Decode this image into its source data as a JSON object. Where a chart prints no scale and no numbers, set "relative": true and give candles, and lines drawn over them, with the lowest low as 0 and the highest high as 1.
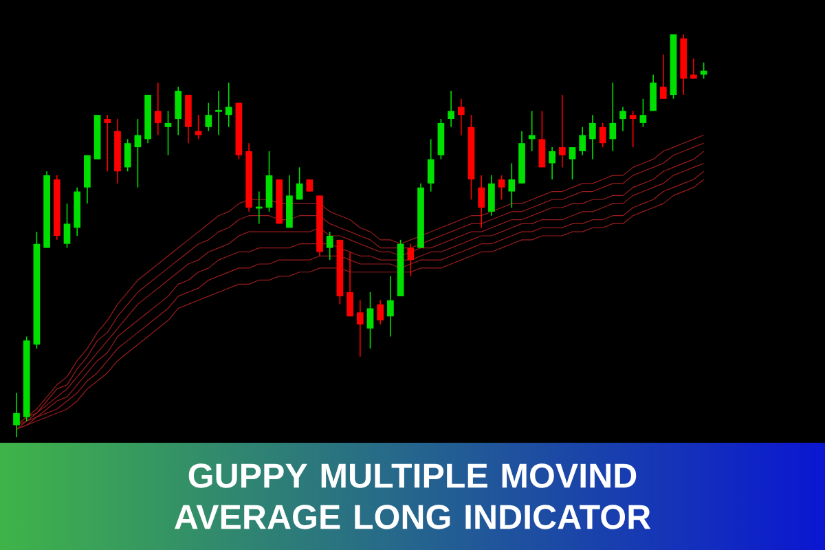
{
  "chart_data": {
    "type": "candlestick",
    "title": "GUPPY MULTIPLE MOVIND AVERAGE LONG INDICATOR",
    "relative": true,
    "categories": [
      null,
      null,
      null,
      null,
      null,
      null,
      null,
      null,
      null,
      null,
      null,
      null,
      null,
      null,
      null,
      null,
      null,
      null,
      null,
      null,
      null,
      null,
      null,
      null,
      null,
      null,
      null,
      null,
      null,
      null,
      null,
      null,
      null,
      null,
      null,
      null,
      null,
      null,
      null,
      null,
      null,
      null,
      null,
      null,
      null,
      null,
      null,
      null,
      null,
      null,
      null,
      null,
      null,
      null,
      null,
      null,
      null,
      null,
      null,
      null,
      null,
      null,
      null,
      null,
      null,
      null,
      null,
      null,
      null
    ],
    "ohlc": [
      [
        0.03,
        0.11,
        0,
        0.06
      ],
      [
        0.05,
        0.25,
        0.04,
        0.24
      ],
      [
        0.23,
        0.51,
        0.22,
        0.48
      ],
      [
        0.47,
        0.66,
        0.47,
        0.65
      ],
      [
        0.64,
        0.65,
        0.49,
        0.5
      ],
      [
        0.48,
        0.58,
        0.47,
        0.53
      ],
      [
        0.52,
        0.62,
        0.5,
        0.61
      ],
      [
        0.62,
        0.7,
        0.58,
        0.7
      ],
      [
        0.69,
        0.8,
        0.69,
        0.8
      ],
      [
        0.79,
        0.8,
        0.66,
        0.78
      ],
      [
        0.76,
        0.79,
        0.63,
        0.66
      ],
      [
        0.67,
        0.74,
        0.66,
        0.73
      ],
      [
        0.72,
        0.79,
        0.62,
        0.75
      ],
      [
        0.74,
        0.85,
        0.73,
        0.85
      ],
      [
        0.81,
        0.88,
        0.75,
        0.78
      ],
      [
        0.77,
        0.81,
        0.7,
        0.78
      ],
      [
        0.79,
        0.87,
        0.75,
        0.86
      ],
      [
        0.85,
        0.85,
        0.73,
        0.77
      ],
      [
        0.76,
        0.8,
        0.74,
        0.75
      ],
      [
        0.77,
        0.83,
        0.76,
        0.8
      ],
      [
        0.81,
        0.86,
        0.75,
        0.81
      ],
      [
        0.8,
        0.88,
        0.77,
        0.82
      ],
      [
        0.83,
        0.83,
        0.69,
        0.7
      ],
      [
        0.71,
        0.73,
        0.56,
        0.57
      ],
      [
        0.57,
        0.61,
        0.53,
        0.57
      ],
      [
        0.57,
        0.71,
        0.56,
        0.65
      ],
      [
        0.64,
        0.64,
        0.53,
        0.53
      ],
      [
        0.52,
        0.65,
        0.52,
        0.6
      ],
      [
        0.59,
        0.67,
        0.59,
        0.63
      ],
      [
        0.64,
        0.64,
        0.61,
        0.61
      ],
      [
        0.6,
        0.6,
        0.45,
        0.46
      ],
      [
        0.47,
        0.51,
        0.44,
        0.5
      ],
      [
        0.49,
        0.49,
        0.33,
        0.35
      ],
      [
        0.36,
        0.46,
        0.3,
        0.3
      ],
      [
        0.31,
        0.34,
        0.2,
        0.28
      ],
      [
        0.27,
        0.36,
        0.22,
        0.32
      ],
      [
        0.33,
        0.34,
        0.28,
        0.29
      ],
      [
        0.3,
        0.4,
        0.25,
        0.34
      ],
      [
        0.35,
        0.49,
        0.35,
        0.48
      ],
      [
        0.47,
        0.48,
        0.4,
        0.44
      ],
      [
        0.47,
        0.63,
        0.47,
        0.62
      ],
      [
        0.63,
        0.74,
        0.61,
        0.69
      ],
      [
        0.7,
        0.79,
        0.69,
        0.78
      ],
      [
        0.79,
        0.86,
        0.77,
        0.81
      ],
      [
        0.82,
        0.84,
        0.75,
        0.8
      ],
      [
        0.77,
        0.8,
        0.59,
        0.64
      ],
      [
        0.62,
        0.65,
        0.52,
        0.57
      ],
      [
        0.56,
        0.65,
        0.55,
        0.63
      ],
      [
        0.64,
        0.65,
        0.59,
        0.62
      ],
      [
        0.61,
        0.68,
        0.57,
        0.64
      ],
      [
        0.63,
        0.76,
        0.63,
        0.73
      ],
      [
        0.74,
        0.81,
        0.71,
        0.75
      ],
      [
        0.74,
        0.81,
        0.67,
        0.67
      ],
      [
        0.68,
        0.72,
        0.64,
        0.71
      ],
      [
        0.72,
        0.85,
        0.67,
        0.7
      ],
      [
        0.69,
        0.72,
        0.64,
        0.72
      ],
      [
        0.71,
        0.77,
        0.7,
        0.75
      ],
      [
        0.74,
        0.8,
        0.69,
        0.78
      ],
      [
        0.77,
        0.78,
        0.72,
        0.73
      ],
      [
        0.74,
        0.88,
        0.71,
        0.78
      ],
      [
        0.79,
        0.82,
        0.76,
        0.81
      ],
      [
        0.8,
        0.81,
        0.72,
        0.79
      ],
      [
        0.78,
        0.84,
        0.77,
        0.8
      ],
      [
        0.81,
        0.9,
        0.81,
        0.88
      ],
      [
        0.87,
        0.95,
        0.84,
        0.84
      ],
      [
        0.85,
        1.0,
        0.84,
        1.0
      ],
      [
        0.99,
        1.0,
        0.85,
        0.89
      ],
      [
        0.9,
        0.94,
        0.89,
        0.89
      ],
      [
        0.9,
        0.93,
        0.89,
        0.91
      ]
    ],
    "colors": [
      "#00e000",
      "#00e000",
      "#00e000",
      "#00e000",
      "#ff0000",
      "#00e000",
      "#00e000",
      "#00e000",
      "#00e000",
      "#ff0000",
      "#ff0000",
      "#00e000",
      "#00e000",
      "#00e000",
      "#ff0000",
      "#00e000",
      "#00e000",
      "#ff0000",
      "#ff0000",
      "#00e000",
      "#00e000",
      "#00e000",
      "#ff0000",
      "#ff0000",
      "#00e000",
      "#00e000",
      "#ff0000",
      "#00e000",
      "#00e000",
      "#ff0000",
      "#ff0000",
      "#00e000",
      "#ff0000",
      "#ff0000",
      "#ff0000",
      "#00e000",
      "#ff0000",
      "#00e000",
      "#00e000",
      "#ff0000",
      "#00e000",
      "#00e000",
      "#00e000",
      "#00e000",
      "#ff0000",
      "#ff0000",
      "#ff0000",
      "#00e000",
      "#ff0000",
      "#00e000",
      "#00e000",
      "#00e000",
      "#ff0000",
      "#00e000",
      "#ff0000",
      "#00e000",
      "#00e000",
      "#00e000",
      "#ff0000",
      "#00e000",
      "#00e000",
      "#ff0000",
      "#00e000",
      "#00e000",
      "#ff0000",
      "#00e000",
      "#ff0000",
      "#ff0000",
      "#00e000"
    ],
    "series": [
      {
        "type": "line",
        "color": "#9a1c1c",
        "values": [
          0.03,
          0.05,
          0.07,
          0.1,
          0.13,
          0.15,
          0.19,
          0.22,
          0.26,
          0.29,
          0.33,
          0.36,
          0.39,
          0.41,
          0.43,
          0.45,
          0.47,
          0.49,
          0.51,
          0.53,
          0.55,
          0.56,
          0.58,
          0.59,
          0.59,
          0.59,
          0.58,
          0.58,
          0.58,
          0.58,
          0.58,
          0.56,
          0.55,
          0.54,
          0.52,
          0.51,
          0.49,
          0.49,
          0.48,
          0.49,
          0.5,
          0.51,
          0.52,
          0.53,
          0.54,
          0.55,
          0.55,
          0.56,
          0.57,
          0.58,
          0.58,
          0.59,
          0.6,
          0.61,
          0.61,
          0.62,
          0.63,
          0.63,
          0.64,
          0.65,
          0.65,
          0.67,
          0.68,
          0.69,
          0.71,
          0.72,
          0.73,
          0.74,
          0.75
        ]
      },
      {
        "type": "line",
        "color": "#9a1c1c",
        "values": [
          0.03,
          0.05,
          0.06,
          0.09,
          0.12,
          0.13,
          0.17,
          0.2,
          0.24,
          0.26,
          0.3,
          0.33,
          0.36,
          0.38,
          0.4,
          0.42,
          0.44,
          0.46,
          0.48,
          0.49,
          0.51,
          0.52,
          0.54,
          0.55,
          0.55,
          0.55,
          0.54,
          0.54,
          0.55,
          0.55,
          0.55,
          0.53,
          0.52,
          0.51,
          0.5,
          0.49,
          0.47,
          0.47,
          0.47,
          0.47,
          0.48,
          0.49,
          0.5,
          0.51,
          0.52,
          0.53,
          0.53,
          0.54,
          0.55,
          0.56,
          0.56,
          0.57,
          0.58,
          0.59,
          0.59,
          0.6,
          0.61,
          0.61,
          0.62,
          0.63,
          0.63,
          0.65,
          0.66,
          0.67,
          0.68,
          0.7,
          0.71,
          0.72,
          0.73
        ]
      },
      {
        "type": "line",
        "color": "#9a1c1c",
        "values": [
          0.03,
          0.04,
          0.06,
          0.08,
          0.1,
          0.12,
          0.15,
          0.18,
          0.21,
          0.24,
          0.27,
          0.3,
          0.33,
          0.35,
          0.37,
          0.39,
          0.41,
          0.43,
          0.44,
          0.46,
          0.47,
          0.48,
          0.5,
          0.51,
          0.51,
          0.51,
          0.51,
          0.51,
          0.51,
          0.51,
          0.52,
          0.5,
          0.5,
          0.49,
          0.48,
          0.47,
          0.46,
          0.46,
          0.45,
          0.46,
          0.47,
          0.47,
          0.48,
          0.49,
          0.5,
          0.51,
          0.51,
          0.52,
          0.53,
          0.54,
          0.54,
          0.55,
          0.56,
          0.57,
          0.57,
          0.58,
          0.58,
          0.59,
          0.59,
          0.6,
          0.6,
          0.62,
          0.63,
          0.64,
          0.66,
          0.67,
          0.68,
          0.69,
          0.71
        ]
      },
      {
        "type": "line",
        "color": "#9a1c1c",
        "values": [
          0.02,
          0.04,
          0.05,
          0.07,
          0.09,
          0.1,
          0.13,
          0.16,
          0.19,
          0.21,
          0.25,
          0.27,
          0.29,
          0.31,
          0.33,
          0.35,
          0.38,
          0.39,
          0.41,
          0.42,
          0.44,
          0.45,
          0.46,
          0.46,
          0.47,
          0.47,
          0.47,
          0.47,
          0.48,
          0.48,
          0.48,
          0.48,
          0.47,
          0.46,
          0.45,
          0.45,
          0.44,
          0.44,
          0.44,
          0.44,
          0.45,
          0.46,
          0.46,
          0.47,
          0.48,
          0.49,
          0.5,
          0.5,
          0.51,
          0.52,
          0.53,
          0.53,
          0.54,
          0.54,
          0.54,
          0.55,
          0.56,
          0.56,
          0.57,
          0.58,
          0.58,
          0.6,
          0.61,
          0.62,
          0.63,
          0.65,
          0.66,
          0.67,
          0.68
        ]
      },
      {
        "type": "line",
        "color": "#9a1c1c",
        "values": [
          0.02,
          0.03,
          0.05,
          0.06,
          0.07,
          0.09,
          0.11,
          0.14,
          0.16,
          0.19,
          0.22,
          0.24,
          0.26,
          0.28,
          0.3,
          0.32,
          0.35,
          0.36,
          0.37,
          0.39,
          0.4,
          0.41,
          0.42,
          0.42,
          0.43,
          0.43,
          0.44,
          0.44,
          0.44,
          0.44,
          0.45,
          0.45,
          0.45,
          0.44,
          0.43,
          0.43,
          0.43,
          0.43,
          0.42,
          0.43,
          0.44,
          0.44,
          0.44,
          0.45,
          0.46,
          0.47,
          0.48,
          0.48,
          0.49,
          0.5,
          0.51,
          0.51,
          0.52,
          0.52,
          0.52,
          0.53,
          0.53,
          0.54,
          0.54,
          0.55,
          0.55,
          0.57,
          0.58,
          0.59,
          0.61,
          0.62,
          0.63,
          0.64,
          0.66
        ]
      },
      {
        "type": "line",
        "color": "#9a1c1c",
        "values": [
          0.02,
          0.03,
          0.04,
          0.05,
          0.06,
          0.07,
          0.09,
          0.12,
          0.14,
          0.16,
          0.19,
          0.21,
          0.23,
          0.25,
          0.27,
          0.29,
          0.32,
          0.33,
          0.34,
          0.35,
          0.36,
          0.37,
          0.38,
          0.38,
          0.39,
          0.39,
          0.4,
          0.4,
          0.41,
          0.41,
          0.42,
          0.42,
          0.42,
          0.41,
          0.41,
          0.41,
          0.41,
          0.41,
          0.41,
          0.41,
          0.42,
          0.42,
          0.42,
          0.43,
          0.44,
          0.45,
          0.46,
          0.46,
          0.47,
          0.48,
          0.49,
          0.49,
          0.5,
          0.5,
          0.5,
          0.51,
          0.51,
          0.52,
          0.52,
          0.53,
          0.53,
          0.55,
          0.56,
          0.57,
          0.58,
          0.6,
          0.61,
          0.62,
          0.64
        ]
      }
    ]
  }
}
